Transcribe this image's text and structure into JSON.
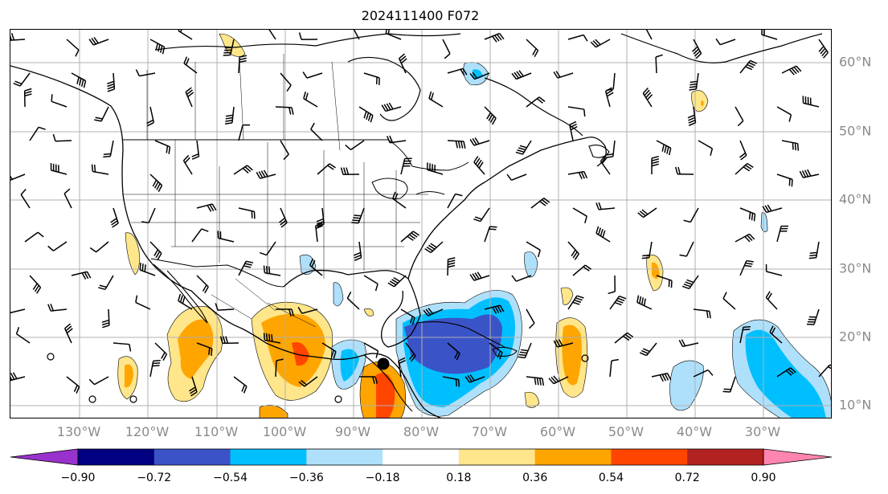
{
  "title": "2024111400 F072",
  "lon_labels": [
    "130°W",
    "120°W",
    "110°W",
    "100°W",
    "90°W",
    "80°W",
    "70°W",
    "60°W",
    "50°W",
    "40°W",
    "30°W"
  ],
  "lat_labels": [
    "60°N",
    "50°N",
    "40°N",
    "30°N",
    "20°N",
    "10°N"
  ],
  "colorbar": {
    "ticks": [
      "−0.90",
      "−0.72",
      "−0.54",
      "−0.36",
      "−0.18",
      "0.18",
      "0.36",
      "0.54",
      "0.72",
      "0.90"
    ],
    "colors": [
      "#9932cc",
      "#000080",
      "#3a54c8",
      "#00bfff",
      "#aee0fb",
      "#ffffff",
      "#ffe68a",
      "#ffa500",
      "#ff4500",
      "#b22222",
      "#ff85b0"
    ]
  },
  "map": {
    "gridlines": true,
    "land_line_color": "#000000",
    "features": [
      "coastlines",
      "country borders",
      "state borders",
      "wind barbs",
      "filled contours"
    ]
  }
}
